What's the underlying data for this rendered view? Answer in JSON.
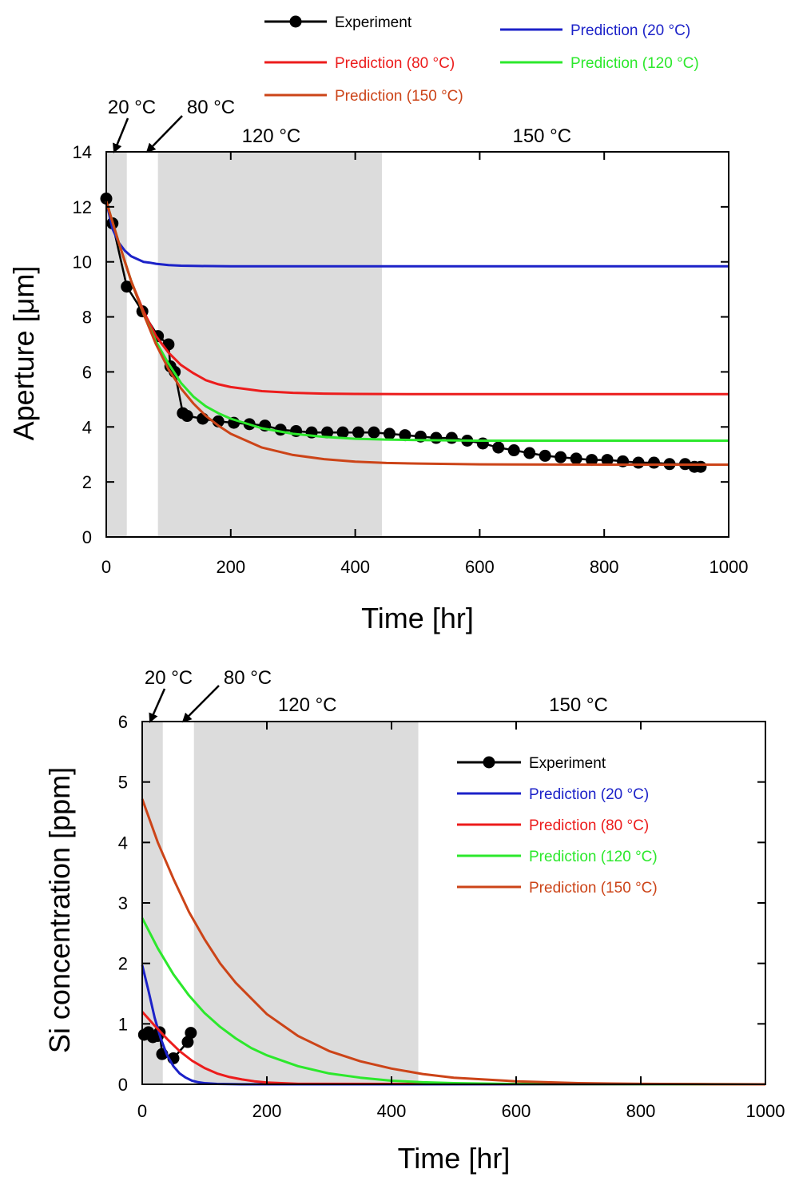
{
  "chart_data": [
    {
      "type": "line",
      "xlabel": "Time [hr]",
      "ylabel": "Aperture [μm]",
      "xlim": [
        0,
        1000
      ],
      "ylim": [
        0,
        14
      ],
      "xticks": [
        0,
        200,
        400,
        600,
        800,
        1000
      ],
      "yticks": [
        0,
        2,
        4,
        6,
        8,
        10,
        12,
        14
      ],
      "legend": [
        "Experiment",
        "Prediction (120 °C)",
        "Prediction (20 °C)",
        "Prediction (150 °C)",
        "Prediction (80 °C)"
      ],
      "legend_placement": "above-plot",
      "shaded_regions": [
        {
          "x": [
            0,
            33
          ]
        },
        {
          "x": [
            83,
            443
          ]
        }
      ],
      "temperature_labels": [
        {
          "text": "20 °C",
          "x": 5
        },
        {
          "text": "80 °C",
          "x": 58
        },
        {
          "text": "120 °C",
          "x": 265
        },
        {
          "text": "150 °C",
          "x": 700
        }
      ],
      "series": [
        {
          "name": "Experiment",
          "color": "#000000",
          "markers": true,
          "x": [
            0,
            10,
            33,
            58,
            83,
            100,
            103,
            110,
            123,
            130,
            155,
            180,
            205,
            230,
            255,
            280,
            305,
            330,
            355,
            380,
            405,
            430,
            455,
            480,
            505,
            530,
            555,
            580,
            605,
            630,
            655,
            680,
            705,
            730,
            755,
            780,
            805,
            830,
            855,
            880,
            905,
            930,
            945,
            955
          ],
          "y": [
            12.3,
            11.4,
            9.1,
            8.2,
            7.3,
            7.0,
            6.2,
            6.0,
            4.5,
            4.4,
            4.3,
            4.2,
            4.15,
            4.1,
            4.05,
            3.9,
            3.85,
            3.8,
            3.8,
            3.8,
            3.8,
            3.8,
            3.75,
            3.7,
            3.65,
            3.6,
            3.6,
            3.5,
            3.4,
            3.25,
            3.15,
            3.05,
            2.95,
            2.9,
            2.85,
            2.8,
            2.8,
            2.75,
            2.7,
            2.7,
            2.65,
            2.65,
            2.55,
            2.55
          ]
        },
        {
          "name": "Prediction (20 °C)",
          "color": "#1c22c8",
          "x": [
            0,
            10,
            20,
            30,
            40,
            50,
            60,
            70,
            80,
            100,
            120,
            150,
            200,
            300,
            500,
            1000
          ],
          "y": [
            12.2,
            11.2,
            10.7,
            10.4,
            10.2,
            10.1,
            10.0,
            9.97,
            9.93,
            9.88,
            9.86,
            9.85,
            9.84,
            9.84,
            9.84,
            9.84
          ]
        },
        {
          "name": "Prediction (80 °C)",
          "color": "#ec1c1c",
          "x": [
            0,
            20,
            40,
            60,
            80,
            100,
            120,
            140,
            160,
            180,
            200,
            250,
            300,
            350,
            400,
            500,
            600,
            800,
            1000
          ],
          "y": [
            12.2,
            10.7,
            9.3,
            8.2,
            7.3,
            6.7,
            6.25,
            5.95,
            5.7,
            5.55,
            5.45,
            5.3,
            5.24,
            5.21,
            5.2,
            5.19,
            5.19,
            5.19,
            5.19
          ]
        },
        {
          "name": "Prediction (120 °C)",
          "color": "#2ce82c",
          "x": [
            0,
            20,
            40,
            60,
            80,
            100,
            120,
            140,
            160,
            180,
            200,
            250,
            300,
            350,
            400,
            450,
            500,
            600,
            800,
            1000
          ],
          "y": [
            12.2,
            10.7,
            9.3,
            8.1,
            7.1,
            6.3,
            5.6,
            5.1,
            4.75,
            4.5,
            4.3,
            3.95,
            3.75,
            3.64,
            3.57,
            3.54,
            3.52,
            3.5,
            3.5,
            3.5
          ]
        },
        {
          "name": "Prediction (150 °C)",
          "color": "#cc4418",
          "x": [
            0,
            20,
            40,
            60,
            80,
            100,
            120,
            140,
            160,
            180,
            200,
            250,
            300,
            350,
            400,
            450,
            500,
            600,
            800,
            1000
          ],
          "y": [
            12.2,
            10.7,
            9.3,
            8.1,
            7.0,
            6.1,
            5.4,
            4.85,
            4.4,
            4.05,
            3.75,
            3.25,
            2.98,
            2.83,
            2.74,
            2.69,
            2.67,
            2.64,
            2.63,
            2.63
          ]
        }
      ]
    },
    {
      "type": "line",
      "xlabel": "Time [hr]",
      "ylabel": "Si concentration [ppm]",
      "xlim": [
        0,
        1000
      ],
      "ylim": [
        0,
        6
      ],
      "xticks": [
        0,
        200,
        400,
        600,
        800,
        1000
      ],
      "yticks": [
        0,
        1,
        2,
        3,
        4,
        5,
        6
      ],
      "legend": [
        "Experiment",
        "Prediction (20 °C)",
        "Prediction (80 °C)",
        "Prediction (120 °C)",
        "Prediction (150 °C)"
      ],
      "legend_placement": "top-right",
      "shaded_regions": [
        {
          "x": [
            0,
            33
          ]
        },
        {
          "x": [
            83,
            443
          ]
        }
      ],
      "temperature_labels": [
        {
          "text": "20 °C",
          "x": 5
        },
        {
          "text": "80 °C",
          "x": 58
        },
        {
          "text": "120 °C",
          "x": 265
        },
        {
          "text": "150 °C",
          "x": 700
        }
      ],
      "series": [
        {
          "name": "Experiment",
          "color": "#000000",
          "markers": true,
          "x": [
            3,
            10,
            17,
            25,
            28,
            32,
            50,
            73,
            78
          ],
          "y": [
            0.82,
            0.86,
            0.78,
            0.8,
            0.86,
            0.5,
            0.43,
            0.7,
            0.85
          ]
        },
        {
          "name": "Prediction (20 °C)",
          "color": "#1c22c8",
          "x": [
            0,
            10,
            20,
            30,
            40,
            50,
            60,
            70,
            80,
            90,
            100,
            120,
            140,
            160,
            1000
          ],
          "y": [
            1.97,
            1.55,
            1.1,
            0.75,
            0.48,
            0.3,
            0.18,
            0.11,
            0.06,
            0.035,
            0.02,
            0.006,
            0.002,
            0,
            0
          ]
        },
        {
          "name": "Prediction (80 °C)",
          "color": "#ec1c1c",
          "x": [
            0,
            20,
            40,
            60,
            80,
            100,
            120,
            140,
            160,
            180,
            200,
            250,
            1000
          ],
          "y": [
            1.2,
            0.97,
            0.75,
            0.55,
            0.39,
            0.27,
            0.18,
            0.12,
            0.08,
            0.05,
            0.03,
            0.008,
            0
          ]
        },
        {
          "name": "Prediction (120 °C)",
          "color": "#2ce82c",
          "x": [
            0,
            25,
            50,
            75,
            100,
            125,
            150,
            175,
            200,
            250,
            300,
            350,
            400,
            450,
            500,
            600,
            1000
          ],
          "y": [
            2.75,
            2.25,
            1.82,
            1.47,
            1.18,
            0.95,
            0.76,
            0.6,
            0.48,
            0.3,
            0.18,
            0.11,
            0.06,
            0.035,
            0.02,
            0.005,
            0
          ]
        },
        {
          "name": "Prediction (150 °C)",
          "color": "#cc4418",
          "x": [
            0,
            25,
            50,
            75,
            100,
            125,
            150,
            200,
            250,
            300,
            350,
            400,
            450,
            500,
            600,
            700,
            800,
            900,
            1000
          ],
          "y": [
            4.72,
            4.0,
            3.4,
            2.85,
            2.4,
            2.0,
            1.68,
            1.16,
            0.8,
            0.55,
            0.38,
            0.26,
            0.17,
            0.11,
            0.05,
            0.02,
            0.008,
            0.002,
            0
          ]
        }
      ]
    }
  ]
}
